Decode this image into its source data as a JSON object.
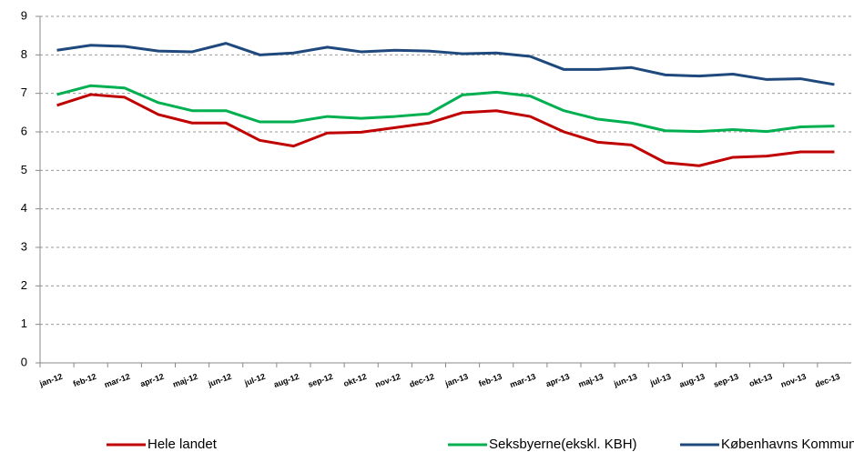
{
  "chart_data": {
    "type": "line",
    "categories": [
      "jan-12",
      "feb-12",
      "mar-12",
      "apr-12",
      "maj-12",
      "jun-12",
      "jul-12",
      "aug-12",
      "sep-12",
      "okt-12",
      "nov-12",
      "dec-12",
      "jan-13",
      "feb-13",
      "mar-13",
      "apr-13",
      "maj-13",
      "jun-13",
      "jul-13",
      "aug-13",
      "sep-13",
      "okt-13",
      "nov-13",
      "dec-13"
    ],
    "series": [
      {
        "name": "Hele landet",
        "color": "#c00000",
        "values": [
          6.69,
          6.97,
          6.9,
          6.45,
          6.23,
          6.23,
          5.78,
          5.63,
          5.97,
          5.99,
          6.11,
          6.23,
          6.5,
          6.55,
          6.4,
          6.0,
          5.73,
          5.66,
          5.2,
          5.12,
          5.34,
          5.37,
          5.48,
          5.48
        ]
      },
      {
        "name": "Seksbyerne(ekskl. KBH)",
        "color": "#00b050",
        "values": [
          6.97,
          7.2,
          7.14,
          6.76,
          6.55,
          6.55,
          6.26,
          6.26,
          6.4,
          6.35,
          6.4,
          6.47,
          6.96,
          7.03,
          6.93,
          6.55,
          6.33,
          6.23,
          6.03,
          6.01,
          6.06,
          6.01,
          6.13,
          6.15
        ]
      },
      {
        "name": "Københavns Kommune",
        "color": "#1f497d",
        "values": [
          8.12,
          8.25,
          8.22,
          8.1,
          8.08,
          8.3,
          8.0,
          8.05,
          8.2,
          8.08,
          8.12,
          8.1,
          8.03,
          8.05,
          7.96,
          7.62,
          7.62,
          7.67,
          7.48,
          7.45,
          7.5,
          7.36,
          7.38,
          7.23
        ]
      }
    ],
    "ylim": [
      0,
      9
    ],
    "yticks": [
      0,
      1,
      2,
      3,
      4,
      5,
      6,
      7,
      8,
      9
    ],
    "grid": true,
    "legend": "bottom"
  }
}
